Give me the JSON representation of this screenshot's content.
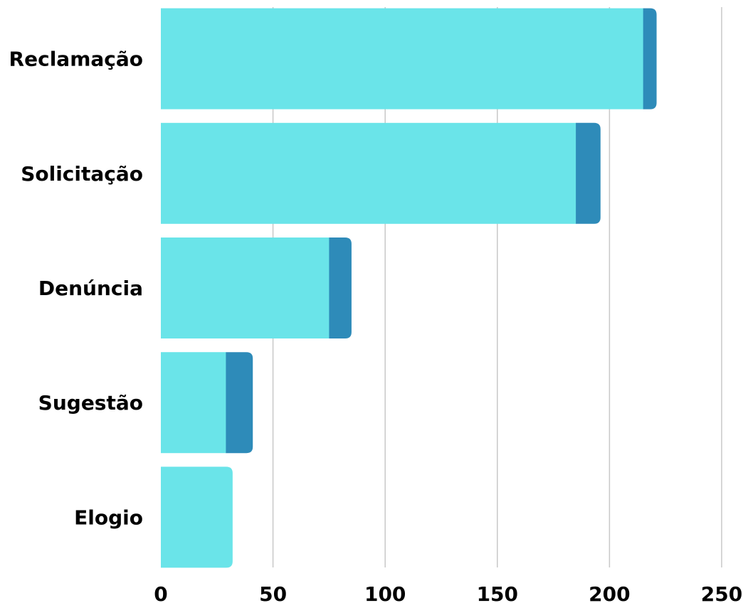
{
  "chart_data": {
    "type": "bar",
    "orientation": "horizontal",
    "stacked": true,
    "categories": [
      "Reclamação",
      "Solicitação",
      "Denúncia",
      "Sugestão",
      "Elogio"
    ],
    "series": [
      {
        "values": [
          215,
          185,
          75,
          29,
          32
        ],
        "color": "#6ae4e9"
      },
      {
        "values": [
          6,
          11,
          10,
          12,
          0
        ],
        "color": "#2e8bb9"
      }
    ],
    "xlim": [
      0,
      250
    ],
    "xticks": [
      0,
      50,
      100,
      150,
      200,
      250
    ],
    "grid": "vertical",
    "title": "",
    "xlabel": "",
    "ylabel": ""
  }
}
